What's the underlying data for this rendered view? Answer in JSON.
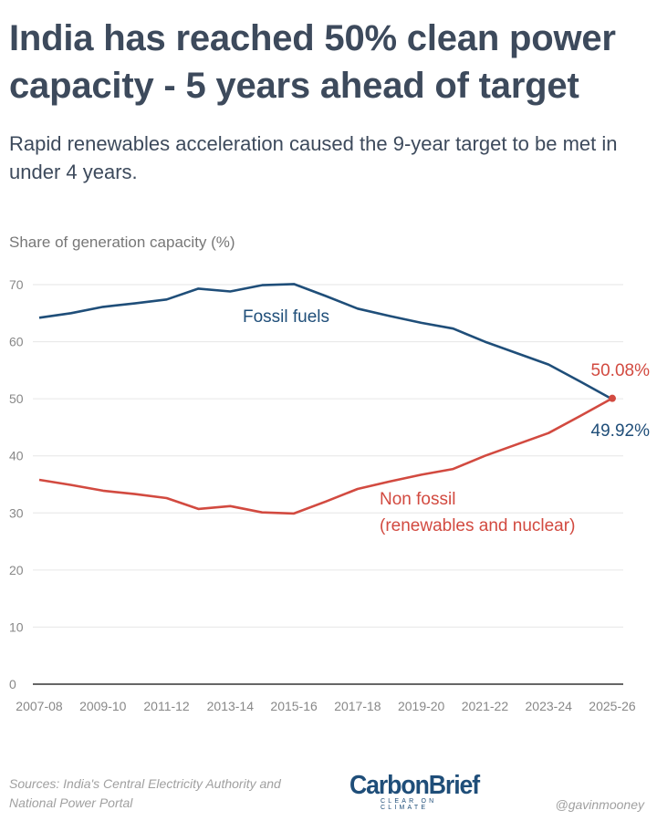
{
  "header": {
    "title": "India has reached 50% clean power capacity - 5 years ahead of target",
    "subtitle": "Rapid renewables acceleration caused the 9-year target to be met in under 4 years."
  },
  "chart_data": {
    "type": "line",
    "ylabel": "Share of generation capacity (%)",
    "xlabel": "",
    "ylim": [
      0,
      70
    ],
    "yticks": [
      0,
      10,
      20,
      30,
      40,
      50,
      60,
      70
    ],
    "x": [
      "2007-08",
      "2008-09",
      "2009-10",
      "2010-11",
      "2011-12",
      "2012-13",
      "2013-14",
      "2014-15",
      "2015-16",
      "2016-17",
      "2017-18",
      "2018-19",
      "2019-20",
      "2020-21",
      "2021-22",
      "2022-23",
      "2023-24",
      "2024-25",
      "2025-26"
    ],
    "x_tick_labels": [
      "2007-08",
      "2009-10",
      "2011-12",
      "2013-14",
      "2015-16",
      "2017-18",
      "2019-20",
      "2021-22",
      "2023-24",
      "2025-26"
    ],
    "grid": true,
    "series": [
      {
        "name": "Fossil fuels",
        "color": "#1f4e79",
        "values": [
          64.2,
          65.0,
          66.1,
          66.7,
          67.4,
          69.3,
          68.8,
          69.9,
          70.1,
          68.0,
          65.8,
          64.5,
          63.3,
          62.3,
          60.0,
          58.0,
          56.0,
          53.0,
          49.92
        ],
        "end_label": "49.92%"
      },
      {
        "name": "Non fossil",
        "name_line2": "(renewables and nuclear)",
        "color": "#d24a40",
        "values": [
          35.8,
          34.9,
          33.9,
          33.3,
          32.6,
          30.7,
          31.2,
          30.1,
          29.9,
          32.0,
          34.2,
          35.5,
          36.7,
          37.7,
          40.0,
          42.0,
          44.0,
          47.0,
          50.08
        ],
        "end_label": "50.08%"
      }
    ]
  },
  "footer": {
    "sources": "Sources: India's Central Electricity Authority and National Power Portal",
    "logo_name": "CarbonBrief",
    "logo_tagline": "CLEAR ON CLIMATE",
    "handle": "@gavinmooney"
  }
}
